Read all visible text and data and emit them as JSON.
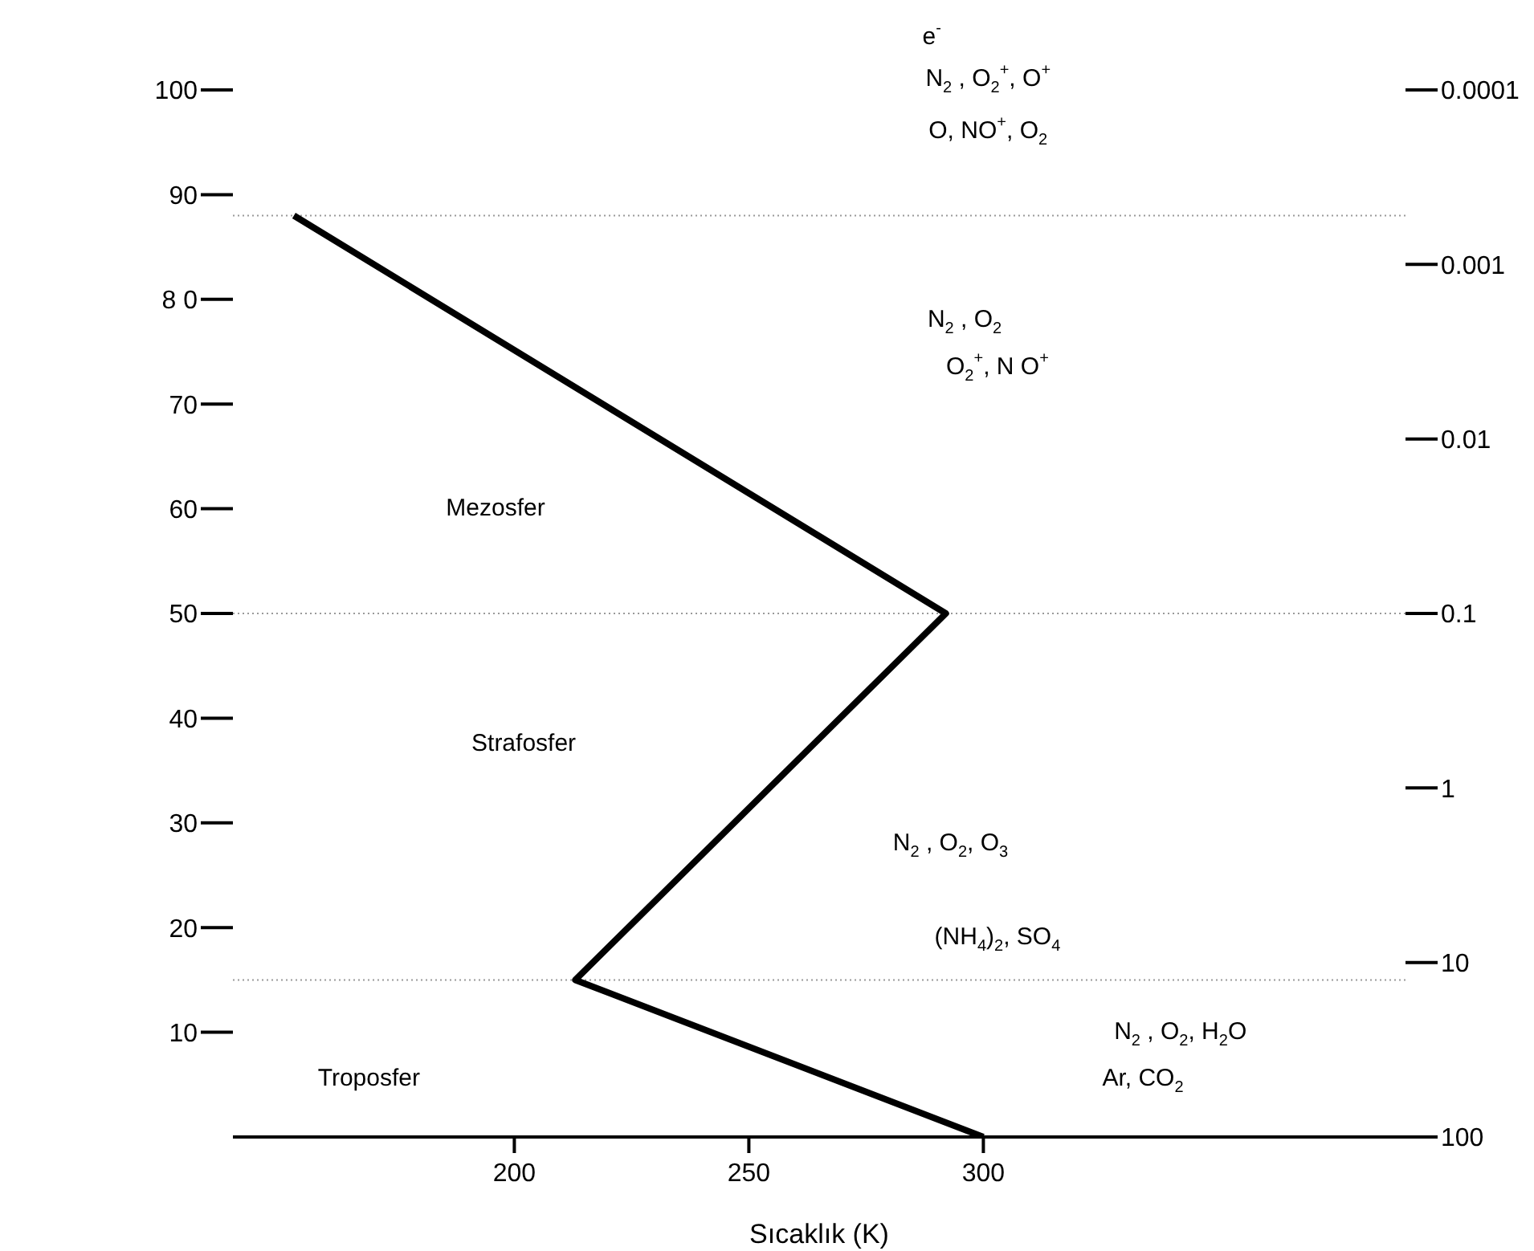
{
  "chart_data": {
    "type": "line",
    "xlabel": "Sıcaklık (K)",
    "x": [
      300,
      213,
      292,
      153
    ],
    "series": [
      {
        "color": "#000000",
        "values": [
          0,
          15,
          50,
          88
        ]
      }
    ],
    "xlim": [
      140,
      390
    ],
    "xticks": [
      200,
      250,
      300
    ],
    "ylim": [
      0,
      100
    ],
    "yticks": [
      10,
      20,
      30,
      40,
      {
        "value": 50,
        "label": "50"
      },
      60,
      70,
      {
        "value": 80,
        "label": "8 0"
      },
      90,
      100
    ],
    "log": "y2",
    "y2lim": [
      100,
      0.0001
    ],
    "y2ticks": [
      100,
      10,
      1,
      0.1,
      0.01,
      0.001,
      0.0001
    ],
    "ref_lines": [
      {
        "axis": "y",
        "value": 88,
        "color": "#999999",
        "line_style": "dotted"
      },
      {
        "axis": "y",
        "value": 50,
        "color": "#999999",
        "line_style": "dotted"
      },
      {
        "axis": "y",
        "value": 15,
        "color": "#999999",
        "line_style": "dotted"
      }
    ],
    "annotations": [
      "e$^{-}$",
      "N$_{2}$ , O$_{2}$$^{+}$,  O$^{+}$",
      "O, NO$^{+}$, O$_{2}$",
      "N$_{2}$ , O$_{2}$",
      "O$_{2}$$^{+}$, N O$^{+}$",
      "Mezosfer",
      "Strafosfer",
      "N$_{2}$ , O$_{2}$,  O$_{3}$",
      "(NH$_{4}$)$_{2}$, SO$_{4}$",
      "N$_{2}$ , O$_{2}$,  H$_{2}$O",
      "Ar, CO$_{2}$",
      "Troposfer"
    ],
    "grid": false,
    "legend": false,
    "marker": "none",
    "line_style": "solid"
  }
}
